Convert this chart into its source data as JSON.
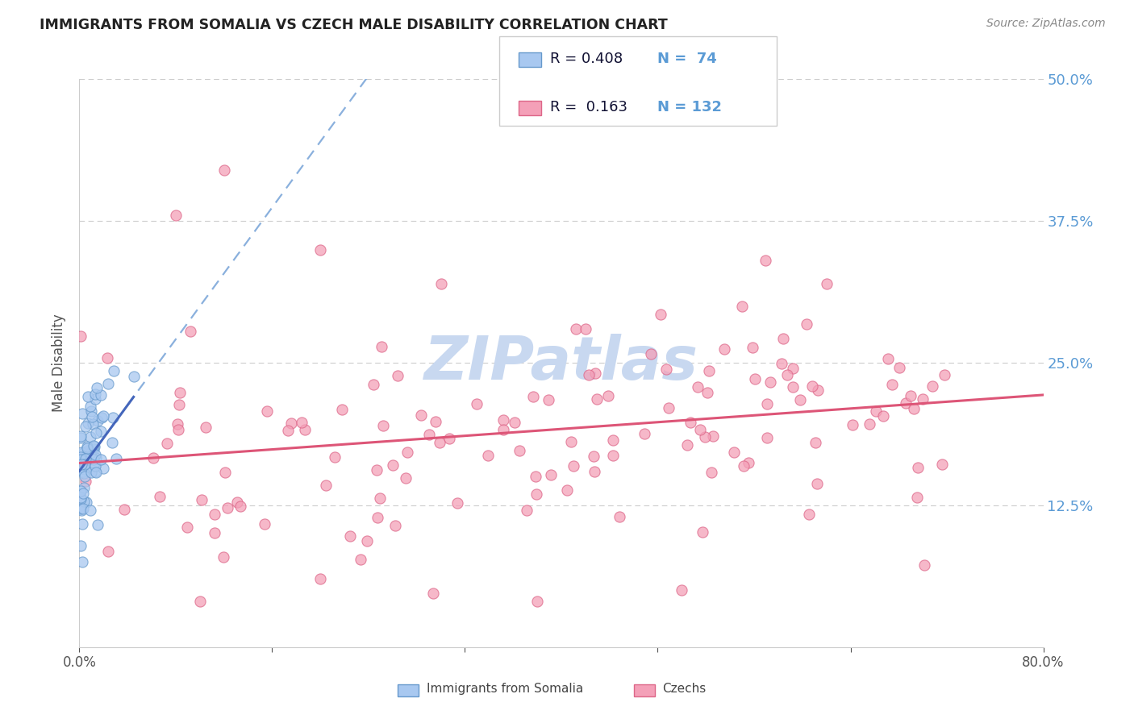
{
  "title": "IMMIGRANTS FROM SOMALIA VS CZECH MALE DISABILITY CORRELATION CHART",
  "source": "Source: ZipAtlas.com",
  "ylabel": "Male Disability",
  "xlim": [
    0.0,
    0.8
  ],
  "ylim": [
    0.0,
    0.5
  ],
  "legend_r1": "R = 0.408",
  "legend_n1": "N =  74",
  "legend_r2": "R =  0.163",
  "legend_n2": "N = 132",
  "color_blue_fill": "#a8c8f0",
  "color_pink_fill": "#f4a0b8",
  "color_blue_edge": "#6699cc",
  "color_pink_edge": "#dd6688",
  "color_blue_line": "#4466bb",
  "color_pink_line": "#dd5577",
  "color_dashed_line": "#8ab0dd",
  "watermark_color": "#c8d8f0",
  "background_color": "#ffffff",
  "grid_color": "#cccccc",
  "right_tick_color": "#5b9bd5",
  "title_color": "#222222",
  "source_color": "#888888",
  "ylabel_color": "#555555",
  "xtick_color": "#555555"
}
